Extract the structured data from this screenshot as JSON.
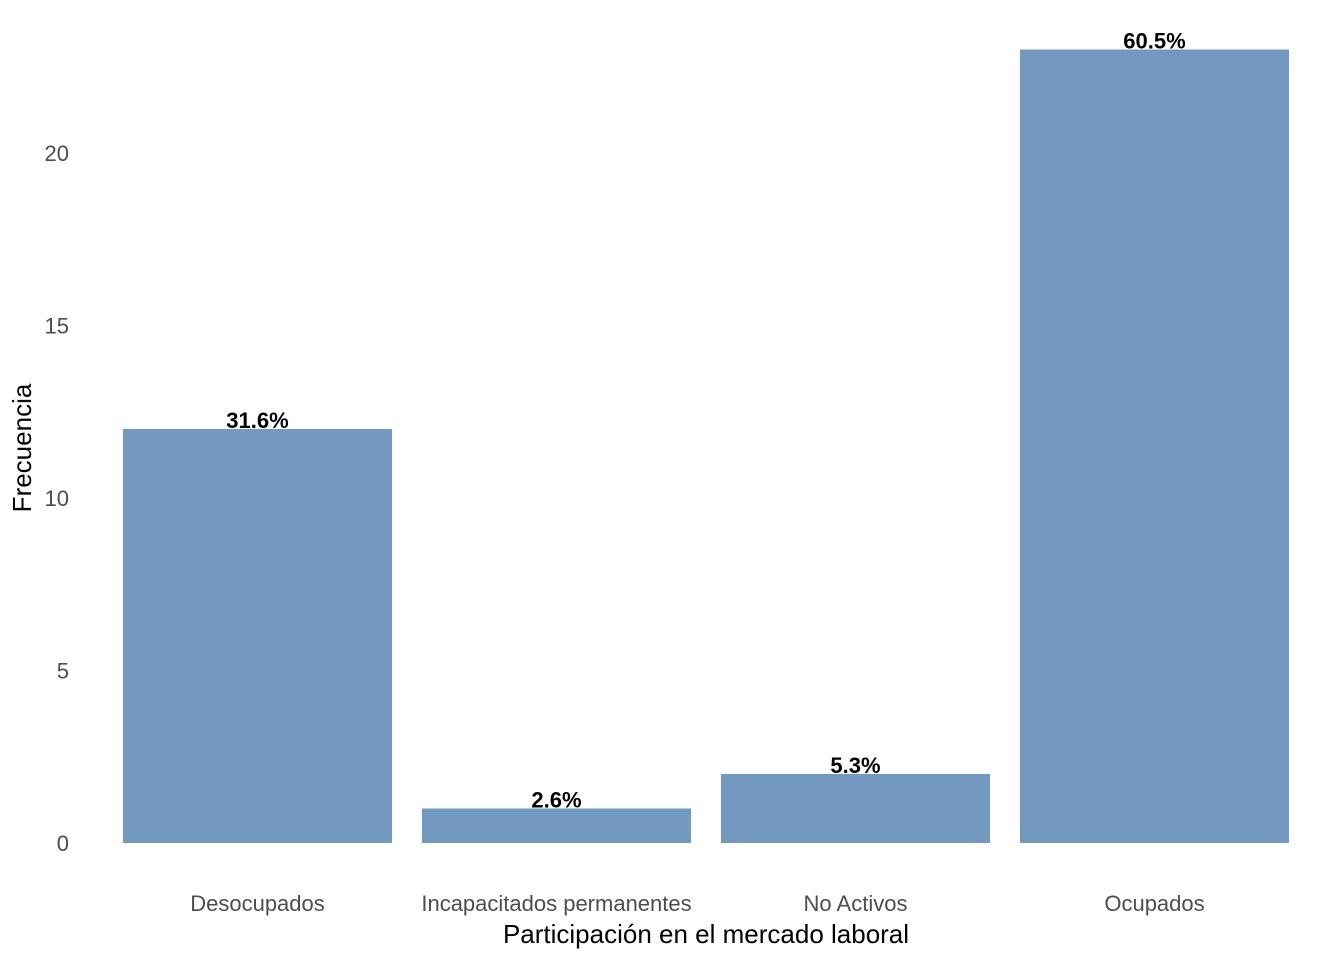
{
  "chart_data": {
    "type": "bar",
    "categories": [
      "Desocupados",
      "Incapacitados permanentes",
      "No Activos",
      "Ocupados"
    ],
    "values": [
      12,
      1,
      2,
      23
    ],
    "data_labels": [
      "31.6%",
      "2.6%",
      "5.3%",
      "60.5%"
    ],
    "xlabel": "Participación en el mercado laboral",
    "ylabel": "Frecuencia",
    "ylim": [
      0,
      23
    ],
    "yticks": [
      0,
      5,
      10,
      15,
      20
    ],
    "grid": false,
    "bar_color": "#7399C1"
  }
}
